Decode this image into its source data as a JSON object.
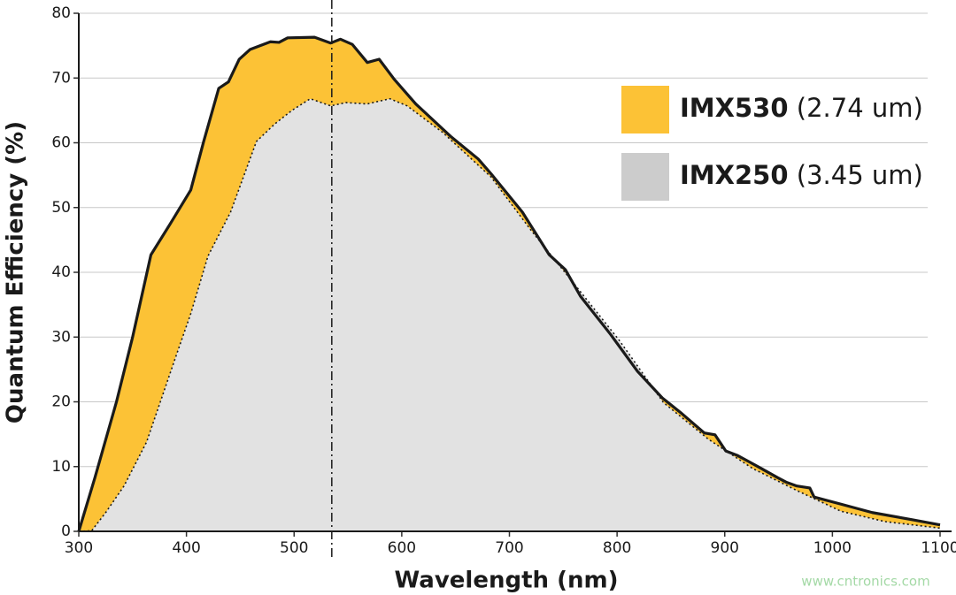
{
  "chart_data": {
    "type": "area",
    "x_label": "Wavelength (nm)",
    "y_label": "Quantum Efficiency (%)",
    "xlim": [
      300,
      1100
    ],
    "xticks": [
      300,
      400,
      500,
      600,
      700,
      800,
      900,
      1000,
      1100
    ],
    "ylim": [
      0,
      80
    ],
    "yticks": [
      0,
      10,
      20,
      30,
      40,
      50,
      60,
      70,
      80
    ],
    "grid": true,
    "vline_x": 535,
    "legend": "upper right",
    "watermark": "www.cntronics.com",
    "series": [
      {
        "name": "IMX530 (2.74 um)",
        "color": "#fcc236",
        "line": "solid",
        "x": [
          300,
          315,
          335,
          350,
          367,
          385,
          404,
          416,
          430,
          439,
          449,
          459,
          478,
          486,
          494,
          519,
          534,
          543,
          554,
          568,
          579,
          593,
          613,
          646,
          671,
          683,
          712,
          737,
          752,
          766,
          794,
          819,
          842,
          860,
          881,
          891,
          901,
          912,
          922,
          934,
          949,
          957,
          967,
          979,
          983,
          1008,
          1037,
          1074,
          1100
        ],
        "values": [
          0,
          8.3,
          20,
          30,
          42.7,
          47.5,
          52.7,
          60.2,
          68.4,
          69.4,
          72.9,
          74.4,
          75.6,
          75.5,
          76.2,
          76.3,
          75.4,
          76,
          75.2,
          72.4,
          72.9,
          69.8,
          66,
          60.9,
          57.5,
          55.2,
          49.3,
          42.7,
          40.4,
          36.3,
          30.4,
          24.7,
          20.6,
          18.2,
          15.2,
          14.9,
          12.4,
          11.7,
          10.8,
          9.7,
          8.3,
          7.6,
          7,
          6.7,
          5.3,
          4.2,
          2.9,
          1.8,
          1
        ]
      },
      {
        "name": "IMX250 (3.45 um)",
        "color": "#e2e2e2",
        "line": "dotted",
        "x": [
          300,
          312,
          325,
          342,
          363,
          391,
          404,
          420,
          441,
          465,
          482,
          498,
          515,
          534,
          548,
          568,
          589,
          605,
          638,
          683,
          720,
          753,
          802,
          843,
          885,
          926,
          967,
          1008,
          1049,
          1100
        ],
        "values": [
          0,
          0.1,
          2.9,
          7,
          13.8,
          27.4,
          33.6,
          42.5,
          49.3,
          60.2,
          62.9,
          65,
          66.8,
          65.7,
          66.2,
          66,
          66.8,
          65.7,
          61.6,
          54.7,
          46.5,
          39.7,
          29.5,
          19.9,
          14.2,
          9.7,
          6.3,
          3.1,
          1.5,
          0.5
        ]
      }
    ]
  }
}
